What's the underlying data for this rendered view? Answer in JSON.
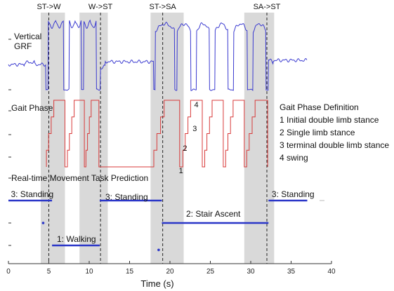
{
  "chart_data": {
    "type": "line",
    "xlabel": "Time (s)",
    "xlim": [
      0,
      40
    ],
    "xticks": [
      0,
      5,
      10,
      15,
      20,
      25,
      30,
      35,
      40
    ],
    "grid": false,
    "transition_labels": [
      {
        "text": "ST->W",
        "t": 5.0
      },
      {
        "text": "W->ST",
        "t": 11.4
      },
      {
        "text": "ST->SA",
        "t": 19.1
      },
      {
        "text": "SA->ST",
        "t": 32.0
      }
    ],
    "shaded_intervals": [
      [
        4.0,
        7.0
      ],
      [
        8.8,
        12.3
      ],
      [
        17.6,
        21.7
      ],
      [
        29.2,
        32.9
      ]
    ],
    "transition_times": [
      5.0,
      11.4,
      19.1,
      32.0
    ],
    "panels": {
      "grf": {
        "label": "Vertical GRF",
        "color": "#3b3bd0",
        "description_points_s": {
          "baseline_before_walk": [
            0,
            4.6
          ],
          "walking_peaks": [
            5.3,
            6.3,
            9.1,
            10.3
          ],
          "stair_peaks": [
            18.6,
            20.9,
            23.3,
            25.8,
            28.1,
            30.6
          ],
          "baseline_after": [
            32.2,
            37
          ]
        }
      },
      "gait_phase": {
        "label": "Gait Phase",
        "color": "#d83a3a",
        "phase_labels": [
          "4",
          "3",
          "2",
          "1"
        ],
        "cycles": [
          {
            "start": 4.7,
            "end": 7.0
          },
          {
            "start": 7.3,
            "end": 9.4
          },
          {
            "start": 9.6,
            "end": 11.2
          },
          {
            "start": 18.0,
            "end": 21.2
          },
          {
            "start": 21.6,
            "end": 24.0
          },
          {
            "start": 24.3,
            "end": 26.6
          },
          {
            "start": 26.9,
            "end": 29.2
          },
          {
            "start": 29.5,
            "end": 32.1
          }
        ]
      },
      "prediction": {
        "label": "Real-time Movement Task Prediction",
        "color": "#2a36c8",
        "levels": [
          3,
          2,
          1,
          0
        ],
        "segments": [
          {
            "label": "3: Standing",
            "level": 3,
            "start": 0,
            "end": 5.4
          },
          {
            "label": "1: Walking",
            "level": 1,
            "start": 5.4,
            "end": 11.3
          },
          {
            "label": "3: Standing",
            "level": 3,
            "start": 11.3,
            "end": 19.0
          },
          {
            "label": "2: Stair Ascent",
            "level": 2,
            "start": 19.0,
            "end": 32.2
          },
          {
            "label": "3: Standing",
            "level": 3,
            "start": 32.2,
            "end": 37.0
          }
        ],
        "dots": [
          {
            "t": 4.3,
            "level": 2
          },
          {
            "t": 18.6,
            "level": 0.8
          }
        ]
      }
    },
    "legend": {
      "title": "Gait Phase Definition",
      "items": [
        "1 Initial double limb stance",
        "2 Single limb stance",
        "3 terminal double limb stance",
        "4 swing"
      ]
    }
  }
}
